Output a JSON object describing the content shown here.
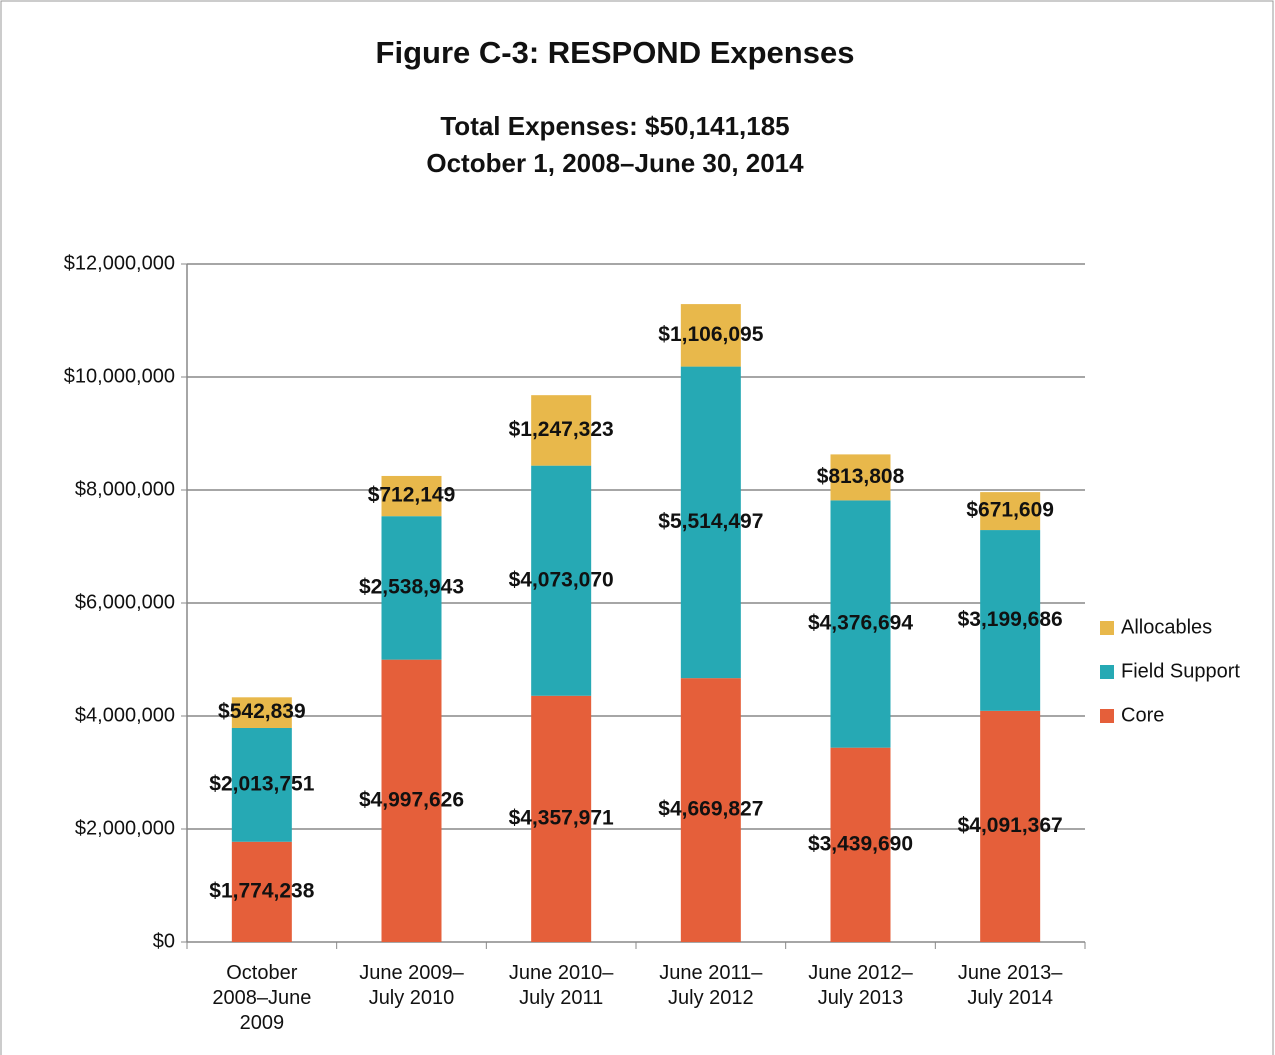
{
  "chart_data": {
    "type": "stacked_bar",
    "title": "Figure C-3: RESPOND Expenses",
    "subtitle": [
      "Total Expenses: $50,141,185",
      "October 1, 2008–June 30, 2014"
    ],
    "categories": [
      "October\n2008–June\n2009",
      "June 2009–\nJuly 2010",
      "June 2010–\nJuly  2011",
      "June 2011–\nJuly 2012",
      "June 2012–\nJuly 2013",
      "June 2013–\nJuly 2014"
    ],
    "series": [
      {
        "name": "Core",
        "color": "#e55f3a",
        "values": [
          1774238,
          4997626,
          4357971,
          4669827,
          3439690,
          4091367
        ],
        "value_labels": [
          "$1,774,238",
          "$4,997,626",
          "$4,357,971",
          "$4,669,827",
          "$3,439,690",
          "$4,091,367"
        ]
      },
      {
        "name": "Field Support",
        "color": "#26a9b4",
        "values": [
          2013751,
          2538943,
          4073070,
          5514497,
          4376694,
          3199686
        ],
        "value_labels": [
          "$2,013,751",
          "$2,538,943",
          "$4,073,070",
          "$5,514,497",
          "$4,376,694",
          "$3,199,686"
        ]
      },
      {
        "name": "Allocables",
        "color": "#e8b84b",
        "values": [
          542839,
          712149,
          1247323,
          1106095,
          813808,
          671609
        ],
        "value_labels": [
          "$542,839",
          "$712,149",
          "$1,247,323",
          "$1,106,095",
          "$813,808",
          "$671,609"
        ]
      }
    ],
    "ylim": [
      0,
      12000000
    ],
    "yticks": [
      {
        "value": 0,
        "label": "$0"
      },
      {
        "value": 2000000,
        "label": "$2,000,000"
      },
      {
        "value": 4000000,
        "label": "$4,000,000"
      },
      {
        "value": 6000000,
        "label": "$6,000,000"
      },
      {
        "value": 8000000,
        "label": "$8,000,000"
      },
      {
        "value": 10000000,
        "label": "$10,000,000"
      },
      {
        "value": 12000000,
        "label": "$12,000,000"
      }
    ],
    "grid": true,
    "legend": "right"
  }
}
